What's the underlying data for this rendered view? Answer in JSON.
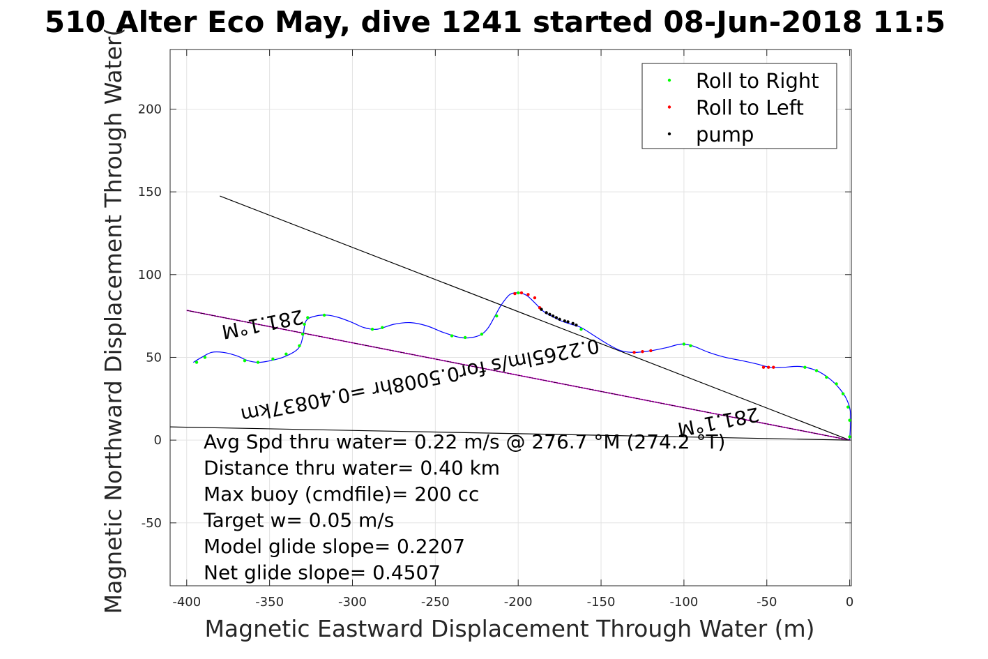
{
  "chart_data": {
    "type": "line",
    "title": "510 Alter Eco May, dive 1241 started 08-Jun-2018 11:5",
    "xlabel": "Magnetic Eastward Displacement Through Water (m)",
    "ylabel": "Magnetic Northward Displacement Through Water(",
    "xlim": [
      -410,
      1
    ],
    "ylim": [
      -88,
      236
    ],
    "xticks": [
      -400,
      -350,
      -300,
      -250,
      -200,
      -150,
      -100,
      -50,
      0
    ],
    "yticks": [
      -50,
      0,
      50,
      100,
      150,
      200
    ],
    "xtick_labels": [
      "-400",
      "-350",
      "-300",
      "-250",
      "-200",
      "-150",
      "-100",
      "-50",
      "0"
    ],
    "ytick_labels": [
      "-50",
      "0",
      "50",
      "100",
      "150",
      "200"
    ],
    "grid": true,
    "legend_position": "top-right",
    "colors": {
      "track": "#0000ff",
      "roll_right": "#00ff00",
      "roll_left": "#ff0000",
      "pump": "#000000",
      "heading_line": "#ff00ff",
      "ref_line": "#000000"
    },
    "legend": [
      {
        "label": "Roll to Right",
        "color": "#00ff00"
      },
      {
        "label": "Roll to Left",
        "color": "#ff0000"
      },
      {
        "label": "pump",
        "color": "#000000"
      }
    ],
    "track": {
      "name": "",
      "points": [
        [
          0,
          0
        ],
        [
          0.5,
          10
        ],
        [
          0.3,
          18
        ],
        [
          -2,
          25
        ],
        [
          -6,
          31
        ],
        [
          -12,
          37
        ],
        [
          -20,
          42
        ],
        [
          -30,
          44.5
        ],
        [
          -40,
          44
        ],
        [
          -48,
          44
        ],
        [
          -56,
          46
        ],
        [
          -65,
          48
        ],
        [
          -75,
          50
        ],
        [
          -85,
          53
        ],
        [
          -95,
          57
        ],
        [
          -102,
          58
        ],
        [
          -110,
          56
        ],
        [
          -120,
          54
        ],
        [
          -130,
          53
        ],
        [
          -138,
          54
        ],
        [
          -146,
          58
        ],
        [
          -154,
          63
        ],
        [
          -162,
          68
        ],
        [
          -168,
          70
        ],
        [
          -174,
          72
        ],
        [
          -180,
          75
        ],
        [
          -185,
          78
        ],
        [
          -190,
          83
        ],
        [
          -195,
          87.5
        ],
        [
          -200,
          89
        ],
        [
          -205,
          88
        ],
        [
          -210,
          82
        ],
        [
          -214,
          75
        ],
        [
          -218,
          68
        ],
        [
          -222,
          64
        ],
        [
          -228,
          62
        ],
        [
          -235,
          62
        ],
        [
          -245,
          65
        ],
        [
          -255,
          69
        ],
        [
          -265,
          71
        ],
        [
          -275,
          70
        ],
        [
          -285,
          67
        ],
        [
          -293,
          68
        ],
        [
          -300,
          71
        ],
        [
          -308,
          74
        ],
        [
          -315,
          75.5
        ],
        [
          -322,
          75
        ],
        [
          -328,
          72
        ],
        [
          -330,
          62
        ],
        [
          -333,
          55
        ],
        [
          -342,
          50
        ],
        [
          -352,
          47.5
        ],
        [
          -357,
          47
        ],
        [
          -363,
          48
        ],
        [
          -370,
          51
        ],
        [
          -378,
          53
        ],
        [
          -385,
          53
        ],
        [
          -391,
          50
        ],
        [
          -396,
          47
        ]
      ]
    },
    "roll_right": [
      [
        0,
        2
      ],
      [
        0,
        12
      ],
      [
        -1,
        20
      ],
      [
        -4,
        28
      ],
      [
        -8,
        34
      ],
      [
        -14,
        38
      ],
      [
        -20,
        42
      ],
      [
        -27,
        44
      ],
      [
        -100,
        58
      ],
      [
        -96,
        57
      ],
      [
        -162,
        67
      ],
      [
        -200,
        89
      ],
      [
        -213,
        75
      ],
      [
        -222,
        64
      ],
      [
        -232,
        62
      ],
      [
        -240,
        63
      ],
      [
        -288,
        67
      ],
      [
        -282,
        68
      ],
      [
        -317,
        75.5
      ],
      [
        -327,
        74
      ],
      [
        -329,
        70
      ],
      [
        -330,
        64
      ],
      [
        -332,
        57
      ],
      [
        -340,
        52
      ],
      [
        -348,
        49
      ],
      [
        -357,
        47
      ],
      [
        -365,
        48
      ],
      [
        -389,
        50
      ],
      [
        -394,
        47
      ]
    ],
    "roll_left": [
      [
        -52,
        44
      ],
      [
        -49,
        44
      ],
      [
        -46,
        44
      ],
      [
        -130,
        53
      ],
      [
        -125,
        53.5
      ],
      [
        -120,
        54
      ],
      [
        -202,
        88.5
      ],
      [
        -198,
        89
      ],
      [
        -194,
        88
      ],
      [
        -190,
        86
      ],
      [
        -187,
        80
      ]
    ],
    "pump": [
      [
        -186,
        79
      ],
      [
        -183,
        77
      ],
      [
        -181,
        76
      ],
      [
        -179,
        75
      ],
      [
        -177,
        74
      ],
      [
        -175,
        73
      ],
      [
        -172,
        72
      ],
      [
        -170,
        71.5
      ],
      [
        -167,
        70.5
      ],
      [
        -165,
        69.5
      ]
    ],
    "heading_line": {
      "from": [
        -400,
        78.4
      ],
      "to": [
        0,
        0
      ]
    },
    "ref_lines": [
      {
        "from": [
          -380,
          147.5
        ],
        "to": [
          0,
          0
        ]
      },
      {
        "from": [
          -410,
          8
        ],
        "to": [
          0,
          0
        ]
      }
    ],
    "annotations": [
      {
        "text": "281.1°M",
        "at": [
          -355,
          74
        ],
        "rotation_deg": 168.9
      },
      {
        "text": "0.2265lm/s for0.5008hr =0.40837km",
        "at": [
          -260,
          40
        ],
        "rotation_deg": 168.9
      },
      {
        "text": "281.1°M",
        "at": [
          -80,
          15
        ],
        "rotation_deg": 168.9
      }
    ],
    "stats": [
      "Avg Spd thru water=  0.22 m/s @ 276.7 °M (274.2 °T)",
      "Distance thru water=  0.40 km",
      "Max buoy (cmdfile)= 200 cc",
      "Target w= 0.05 m/s",
      "Model glide slope= 0.2207",
      "Net glide slope= 0.4507"
    ]
  }
}
